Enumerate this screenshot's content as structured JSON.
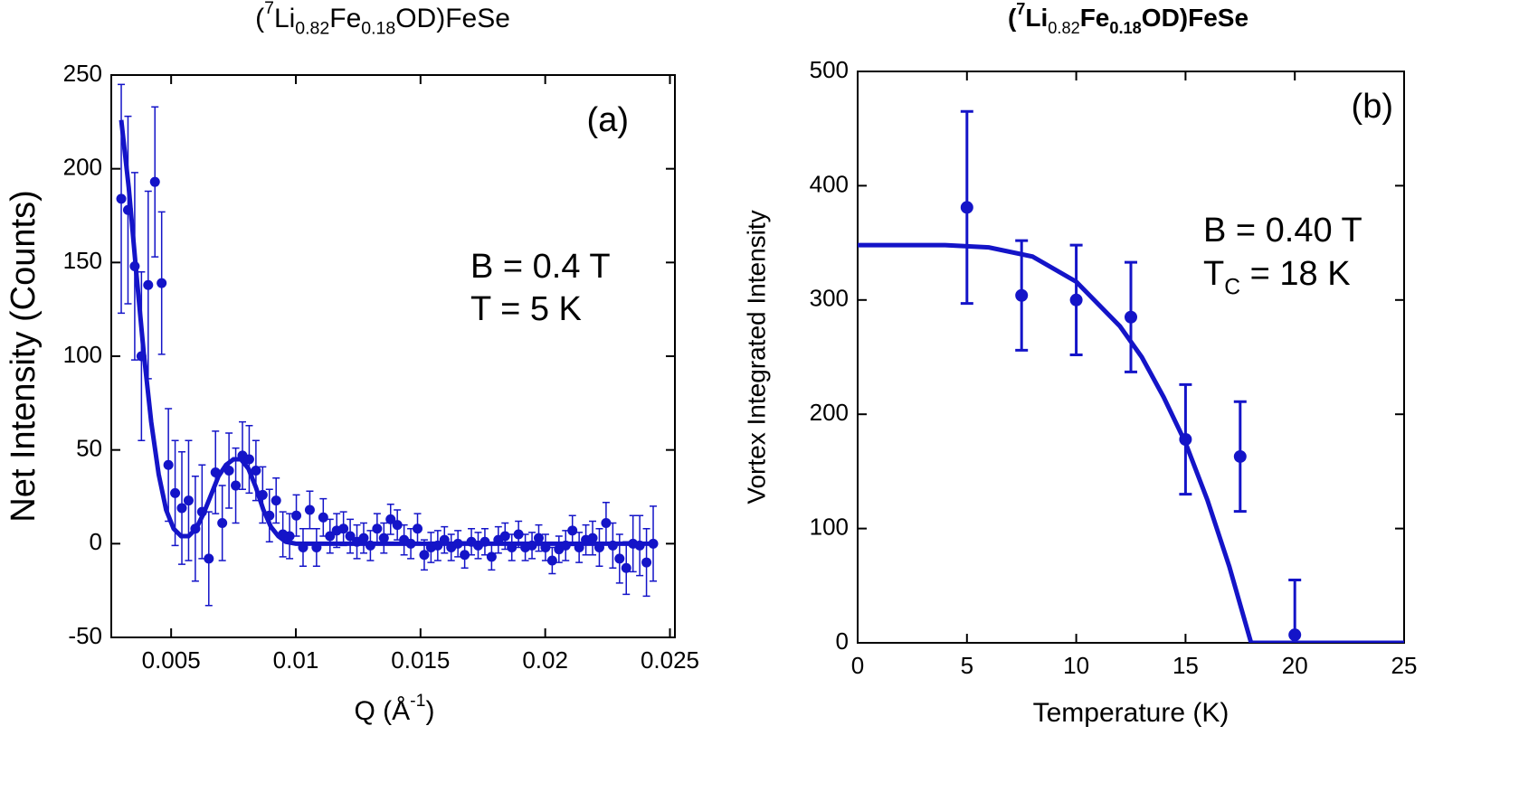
{
  "chart_data": [
    {
      "type": "scatter",
      "title": [
        "(",
        "7",
        "Li",
        "0.82",
        "Fe",
        "0.18",
        "OD)FeSe"
      ],
      "xlabel": [
        "Q (Å",
        "-1",
        ")"
      ],
      "ylabel": "Net Intensity (Counts)",
      "annotations": [
        "(a)",
        "B = 0.4 T",
        "T = 5 K"
      ],
      "xlim": [
        0.0026,
        0.0252
      ],
      "xticks": [
        0.005,
        0.01,
        0.015,
        0.02,
        0.025
      ],
      "ylim": [
        -50,
        250
      ],
      "yticks": [
        -50,
        0,
        50,
        100,
        150,
        200,
        250
      ],
      "series": [
        {
          "type": "scatter",
          "color": "#1414c8",
          "x": [
            0.003,
            0.00327,
            0.00354,
            0.00381,
            0.00408,
            0.00435,
            0.00462,
            0.00489,
            0.00516,
            0.00543,
            0.0057,
            0.00597,
            0.00624,
            0.00651,
            0.00678,
            0.00705,
            0.00732,
            0.00759,
            0.00786,
            0.00813,
            0.0084,
            0.00867,
            0.00894,
            0.00921,
            0.00948,
            0.00975,
            0.01002,
            0.01029,
            0.01056,
            0.01083,
            0.0111,
            0.01137,
            0.01164,
            0.01191,
            0.01218,
            0.01245,
            0.01272,
            0.01299,
            0.01326,
            0.01353,
            0.0138,
            0.01407,
            0.01434,
            0.01461,
            0.01488,
            0.01515,
            0.01542,
            0.01569,
            0.01596,
            0.01623,
            0.0165,
            0.01677,
            0.01704,
            0.01731,
            0.01758,
            0.01785,
            0.01812,
            0.01839,
            0.01866,
            0.01893,
            0.0192,
            0.01947,
            0.01974,
            0.02001,
            0.02028,
            0.02055,
            0.02082,
            0.02109,
            0.02136,
            0.02163,
            0.0219,
            0.02217,
            0.02244,
            0.02271,
            0.02298,
            0.02325,
            0.02352,
            0.02379,
            0.02406,
            0.02433
          ],
          "values": [
            184,
            178,
            148,
            100,
            138,
            193,
            139,
            42,
            27,
            19,
            23,
            8,
            17,
            -8,
            38,
            11,
            39,
            31,
            47,
            45,
            39,
            26,
            15,
            23,
            5,
            4,
            15,
            -2,
            18,
            -2,
            14,
            4,
            7,
            8,
            4,
            1,
            3,
            -1,
            8,
            3,
            13,
            10,
            2,
            0,
            8,
            -6,
            -2,
            -1,
            2,
            -2,
            0,
            -6,
            1,
            -1,
            1,
            -7,
            2,
            4,
            -2,
            5,
            -2,
            -1,
            3,
            -2,
            -9,
            -3,
            -1,
            7,
            -2,
            2,
            3,
            -2,
            11,
            -1,
            -8,
            -13,
            0,
            -1,
            -10,
            0
          ],
          "errors": [
            61,
            50,
            50,
            45,
            50,
            40,
            38,
            30,
            28,
            30,
            32,
            28,
            25,
            25,
            22,
            20,
            20,
            20,
            18,
            18,
            16,
            15,
            14,
            12,
            12,
            12,
            11,
            10,
            10,
            10,
            10,
            9,
            9,
            9,
            9,
            9,
            8,
            8,
            8,
            8,
            8,
            8,
            8,
            8,
            8,
            8,
            8,
            8,
            7,
            7,
            7,
            7,
            7,
            7,
            7,
            7,
            7,
            7,
            7,
            7,
            7,
            7,
            7,
            7,
            7,
            7,
            8,
            8,
            8,
            8,
            9,
            10,
            11,
            12,
            13,
            14,
            15,
            16,
            18,
            20
          ]
        },
        {
          "type": "line",
          "color": "#1414c8",
          "x": [
            0.003,
            0.0033,
            0.0036,
            0.0039,
            0.0042,
            0.0045,
            0.0048,
            0.0051,
            0.0054,
            0.0057,
            0.006,
            0.0063,
            0.0066,
            0.0069,
            0.0072,
            0.0075,
            0.0078,
            0.0081,
            0.0084,
            0.0087,
            0.009,
            0.0093,
            0.0096,
            0.01,
            0.011,
            0.0245
          ],
          "values": [
            226,
            190,
            145,
            102,
            65,
            37,
            18,
            8,
            4,
            4,
            8,
            16,
            26,
            36,
            42,
            45,
            45,
            40,
            30,
            18,
            9,
            4,
            1,
            0,
            0,
            0
          ]
        }
      ]
    },
    {
      "type": "scatter",
      "title": [
        "(",
        "7",
        "Li",
        "0.82",
        "Fe",
        "0.18",
        "OD)FeSe"
      ],
      "xlabel": "Temperature (K)",
      "ylabel": "Vortex Integrated Intensity",
      "annotations": [
        "(b)",
        "B = 0.40 T",
        [
          "T",
          "C",
          " = 18 K"
        ]
      ],
      "xlim": [
        0,
        25
      ],
      "xticks": [
        0,
        5,
        10,
        15,
        20,
        25
      ],
      "ylim": [
        0,
        500
      ],
      "yticks": [
        0,
        100,
        200,
        300,
        400,
        500
      ],
      "series": [
        {
          "type": "scatter",
          "color": "#1414c8",
          "x": [
            5,
            7.5,
            10,
            12.5,
            15,
            17.5,
            20
          ],
          "values": [
            381,
            304,
            300,
            285,
            178,
            163,
            7
          ],
          "errors": [
            84,
            48,
            48,
            48,
            48,
            48,
            48
          ]
        },
        {
          "type": "line",
          "color": "#1414c8",
          "x": [
            0,
            4,
            6,
            8,
            10,
            12,
            13,
            14,
            15,
            16,
            17,
            18,
            25
          ],
          "values": [
            348,
            348,
            346,
            338,
            316,
            277,
            250,
            215,
            175,
            125,
            67,
            0,
            0
          ]
        }
      ]
    }
  ]
}
